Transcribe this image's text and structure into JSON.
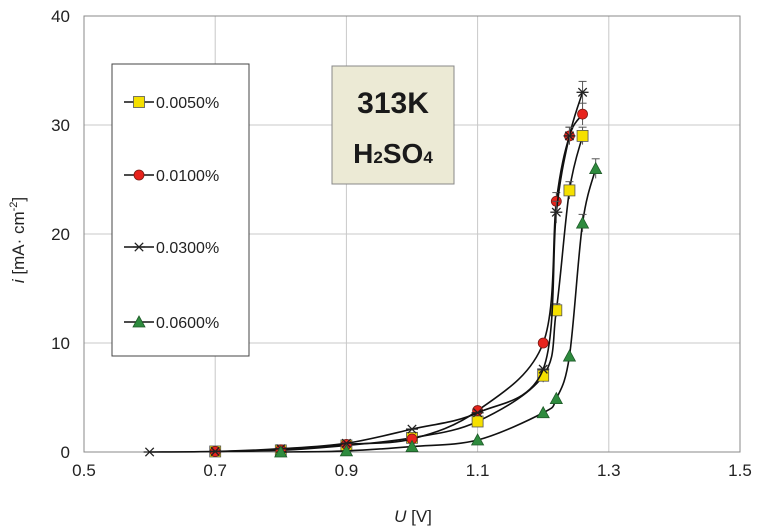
{
  "chart_data": {
    "type": "scatter",
    "title": "",
    "xlabel_var": "U",
    "xlabel_unit": " [V]",
    "ylabel_var": "i",
    "ylabel_unit": " [mA· cm",
    "ylabel_exp": "-2",
    "ylabel_close": "]",
    "xlim": [
      0.5,
      1.5
    ],
    "ylim": [
      0,
      40
    ],
    "x_ticks": [
      0.5,
      0.7,
      0.9,
      1.1,
      1.3,
      1.5
    ],
    "x_tick_labels": [
      "0.5",
      "0.7",
      "0.9",
      "1.1",
      "1.3",
      "1.5"
    ],
    "y_ticks": [
      0,
      10,
      20,
      30,
      40
    ],
    "y_tick_labels": [
      "0",
      "10",
      "20",
      "30",
      "40"
    ],
    "grid": true,
    "legend_position": "left",
    "annotation": {
      "line1": "313K",
      "line2_prefix": "H",
      "line2_sub1": "2",
      "line2_mid": "SO",
      "line2_sub2": "4"
    },
    "series": [
      {
        "name": "0.0050%",
        "marker": "square",
        "color": "#f5e000",
        "x": [
          0.7,
          0.8,
          0.9,
          1.0,
          1.1,
          1.2,
          1.22,
          1.24,
          1.26
        ],
        "y": [
          0.05,
          0.15,
          0.6,
          1.3,
          2.8,
          7.0,
          13.0,
          24.0,
          29.0
        ],
        "err": [
          0,
          0,
          0,
          0,
          0,
          0.6,
          0.6,
          0.8,
          0.8
        ]
      },
      {
        "name": "0.0100%",
        "marker": "circle",
        "color": "#e8231c",
        "x": [
          0.7,
          0.8,
          0.9,
          1.0,
          1.1,
          1.2,
          1.22,
          1.24,
          1.26
        ],
        "y": [
          0.05,
          0.2,
          0.7,
          1.2,
          3.8,
          10.0,
          23.0,
          29.0,
          31.0
        ],
        "err": [
          0,
          0,
          0,
          0,
          0,
          0,
          0.8,
          0.8,
          1.0
        ]
      },
      {
        "name": "0.0300%",
        "marker": "star",
        "color": "#222222",
        "x": [
          0.6,
          0.7,
          0.8,
          0.9,
          1.0,
          1.1,
          1.2,
          1.22,
          1.24,
          1.26
        ],
        "y": [
          0.0,
          0.05,
          0.3,
          0.8,
          2.1,
          3.6,
          7.6,
          22.0,
          29.0,
          33.0
        ],
        "err": [
          0,
          0,
          0,
          0,
          0,
          0,
          0,
          1.0,
          0.8,
          1.0
        ]
      },
      {
        "name": "0.0600%",
        "marker": "triangle",
        "color": "#2e8b3e",
        "x": [
          0.8,
          0.9,
          1.0,
          1.1,
          1.2,
          1.22,
          1.24,
          1.26,
          1.28
        ],
        "y": [
          0.0,
          0.1,
          0.5,
          1.1,
          3.6,
          4.9,
          8.8,
          21.0,
          26.0
        ],
        "err": [
          0,
          0,
          0,
          0,
          0,
          0,
          0,
          0.8,
          0.9
        ]
      }
    ]
  }
}
